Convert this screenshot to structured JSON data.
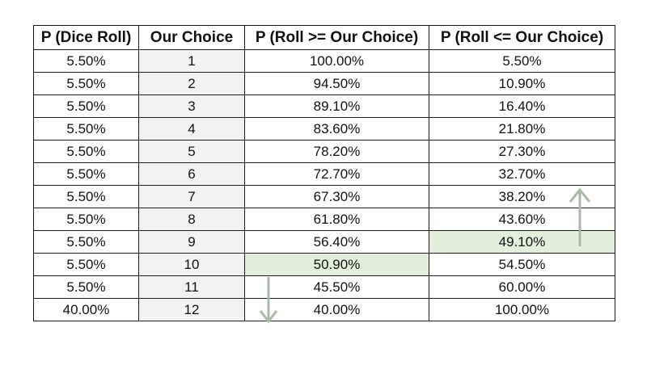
{
  "table": {
    "headers": [
      "P (Dice Roll)",
      "Our Choice",
      "P (Roll >= Our Choice)",
      "P (Roll <= Our Choice)"
    ],
    "rows": [
      [
        "5.50%",
        "1",
        "100.00%",
        "5.50%"
      ],
      [
        "5.50%",
        "2",
        "94.50%",
        "10.90%"
      ],
      [
        "5.50%",
        "3",
        "89.10%",
        "16.40%"
      ],
      [
        "5.50%",
        "4",
        "83.60%",
        "21.80%"
      ],
      [
        "5.50%",
        "5",
        "78.20%",
        "27.30%"
      ],
      [
        "5.50%",
        "6",
        "72.70%",
        "32.70%"
      ],
      [
        "5.50%",
        "7",
        "67.30%",
        "38.20%"
      ],
      [
        "5.50%",
        "8",
        "61.80%",
        "43.60%"
      ],
      [
        "5.50%",
        "9",
        "56.40%",
        "49.10%"
      ],
      [
        "5.50%",
        "10",
        "50.90%",
        "54.50%"
      ],
      [
        "5.50%",
        "11",
        "45.50%",
        "60.00%"
      ],
      [
        "40.00%",
        "12",
        "40.00%",
        "100.00%"
      ]
    ],
    "highlighted_cells": [
      {
        "row": 8,
        "col": 3
      },
      {
        "row": 9,
        "col": 2
      }
    ]
  },
  "annotations": {
    "up_arrow_icon": "up-arrow-icon",
    "down_arrow_icon": "down-arrow-icon",
    "arrow_color": "#a9b8a9"
  },
  "colors": {
    "choice_column_fill": "#f2f2f2",
    "highlight_fill": "#e2efda",
    "border": "#1a1a1a"
  }
}
